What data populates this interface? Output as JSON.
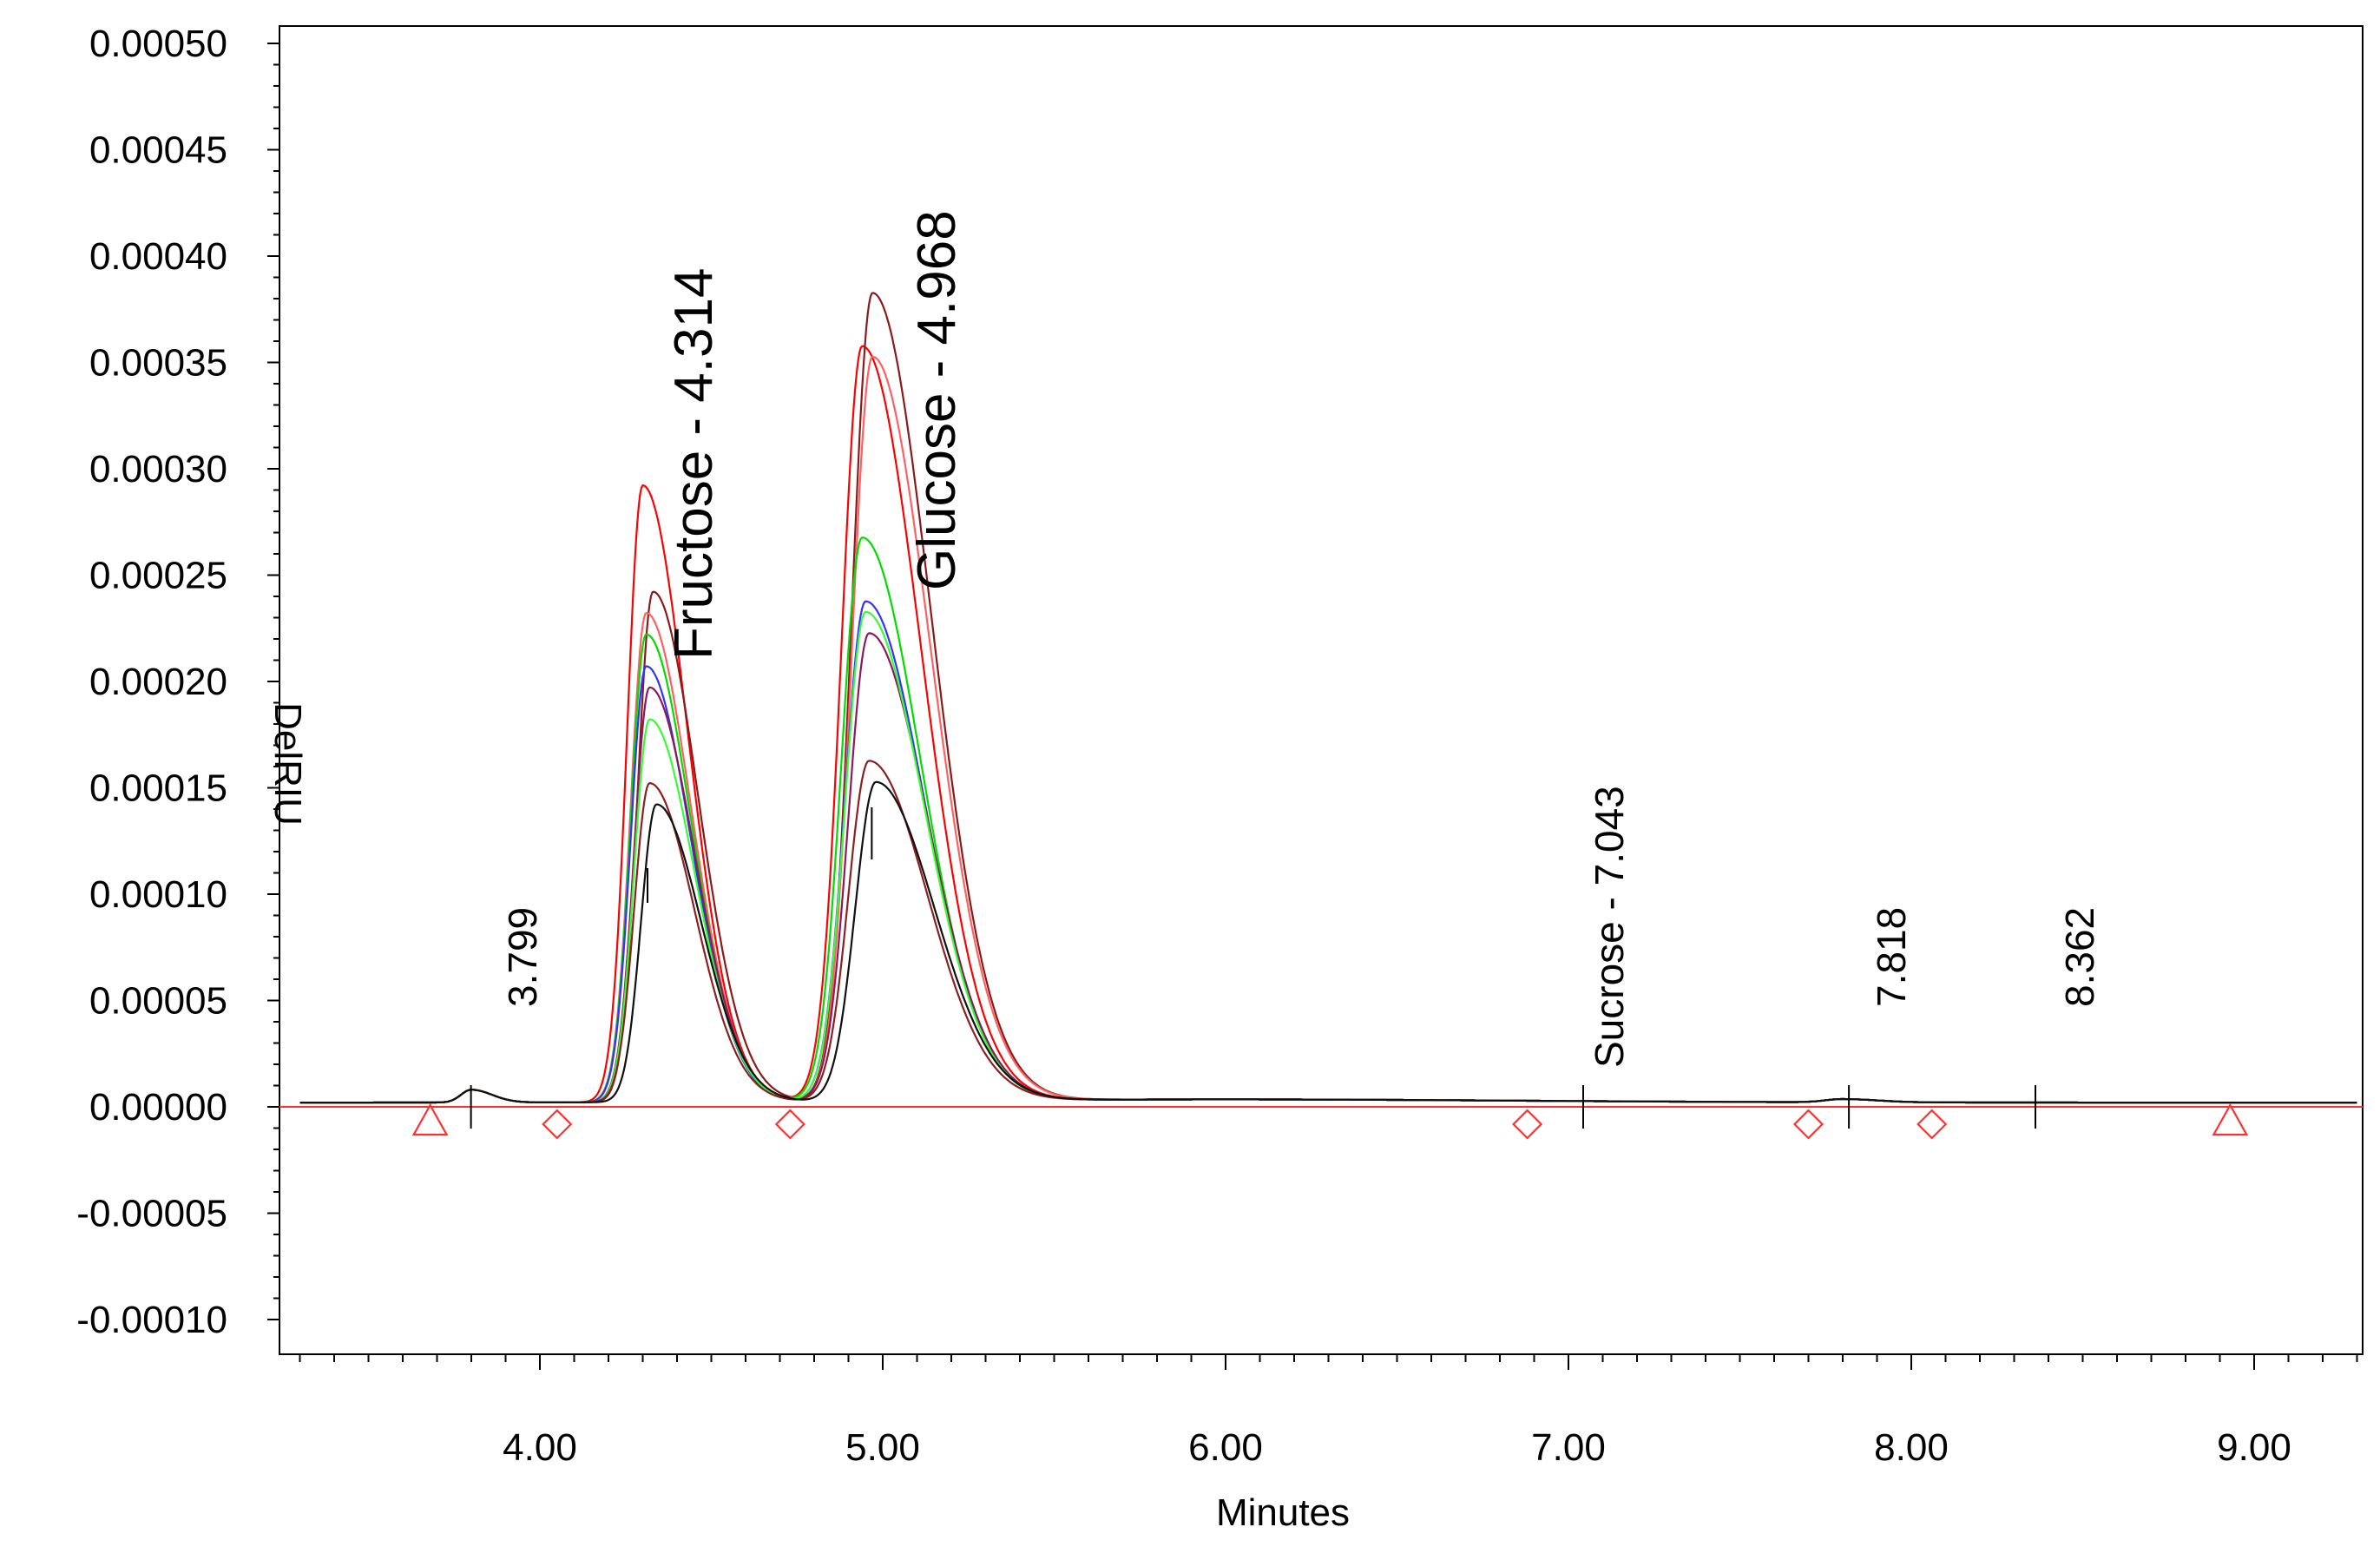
{
  "chart_data": {
    "type": "line",
    "title": "",
    "xlabel": "Minutes",
    "ylabel": "DelRIU",
    "xlim": [
      3.3,
      9.3
    ],
    "ylim": [
      -0.0001,
      0.00052
    ],
    "x_ticks": [
      "4.00",
      "5.00",
      "6.00",
      "7.00",
      "8.00",
      "9.00"
    ],
    "x_tick_values": [
      4,
      5,
      6,
      7,
      8,
      9
    ],
    "y_ticks": [
      "0.00050",
      "0.00045",
      "0.00040",
      "0.00035",
      "0.00030",
      "0.00025",
      "0.00020",
      "0.00015",
      "0.00010",
      "0.00005",
      "0.00000",
      "-0.00005",
      "-0.00010"
    ],
    "y_tick_values": [
      0.0005,
      0.00045,
      0.0004,
      0.00035,
      0.0003,
      0.00025,
      0.0002,
      0.00015,
      0.0001,
      5e-05,
      0,
      -5e-05,
      -0.0001
    ],
    "grid": false,
    "peak_labels": [
      {
        "text": "3.799",
        "x": 3.799,
        "size": "small"
      },
      {
        "text": "Fructose - 4.314",
        "x": 4.314,
        "size": "large"
      },
      {
        "text": "Glucose - 4.968",
        "x": 4.968,
        "size": "large"
      },
      {
        "text": "Sucrose - 7.043",
        "x": 7.043,
        "size": "small"
      },
      {
        "text": "7.818",
        "x": 7.818,
        "size": "small"
      },
      {
        "text": "8.362",
        "x": 8.362,
        "size": "small"
      }
    ],
    "baseline_y": 0.0,
    "integration_markers": [
      {
        "shape": "triangle",
        "x": 3.68
      },
      {
        "shape": "diamond",
        "x": 4.05
      },
      {
        "shape": "diamond",
        "x": 4.73
      },
      {
        "shape": "diamond",
        "x": 6.88
      },
      {
        "shape": "diamond",
        "x": 7.7
      },
      {
        "shape": "diamond",
        "x": 8.06
      },
      {
        "shape": "triangle",
        "x": 8.93
      }
    ],
    "series": [
      {
        "color": "#ff0000",
        "fru_h": 0.00029,
        "fru_x": 4.3,
        "glu_h": 0.000355,
        "glu_x": 4.94
      },
      {
        "color": "#8b1a1a",
        "fru_h": 0.00024,
        "fru_x": 4.33,
        "glu_h": 0.00038,
        "glu_x": 4.97
      },
      {
        "color": "#ff6060",
        "fru_h": 0.00023,
        "fru_x": 4.31,
        "glu_h": 0.00035,
        "glu_x": 4.97
      },
      {
        "color": "#00dd00",
        "fru_h": 0.00022,
        "fru_x": 4.31,
        "glu_h": 0.000265,
        "glu_x": 4.94
      },
      {
        "color": "#3333ff",
        "fru_h": 0.000205,
        "fru_x": 4.31,
        "glu_h": 0.000235,
        "glu_x": 4.95
      },
      {
        "color": "#8b1a5a",
        "fru_h": 0.000195,
        "fru_x": 4.32,
        "glu_h": 0.00022,
        "glu_x": 4.96
      },
      {
        "color": "#33ff33",
        "fru_h": 0.00018,
        "fru_x": 4.32,
        "glu_h": 0.00023,
        "glu_x": 4.95
      },
      {
        "color": "#8b2020",
        "fru_h": 0.00015,
        "fru_x": 4.32,
        "glu_h": 0.00016,
        "glu_x": 4.96
      },
      {
        "color": "#111111",
        "fru_h": 0.00014,
        "fru_x": 4.34,
        "glu_h": 0.00015,
        "glu_x": 4.98
      }
    ]
  }
}
